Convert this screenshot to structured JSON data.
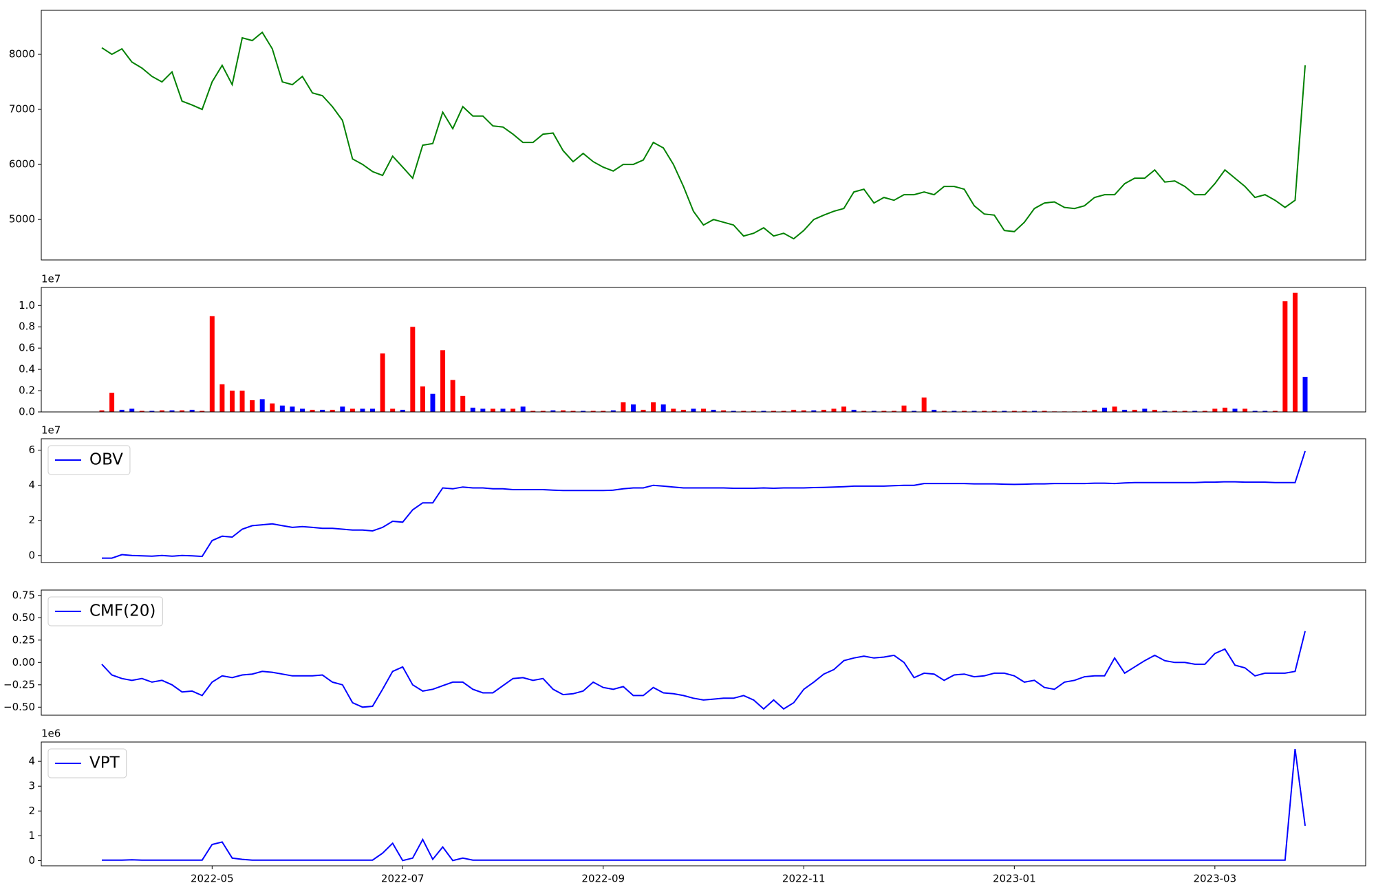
{
  "chart_data": [
    {
      "type": "line",
      "ylim": [
        4265,
        8800
      ],
      "yticks": [
        5000,
        6000,
        7000,
        8000
      ],
      "series": [
        {
          "color": "#008000",
          "values": [
            8120,
            8000,
            8100,
            7860,
            7750,
            7600,
            7500,
            7680,
            7150,
            7080,
            7000,
            7500,
            7800,
            7450,
            8300,
            8250,
            8400,
            8100,
            7500,
            7450,
            7600,
            7300,
            7250,
            7050,
            6800,
            6100,
            6000,
            5870,
            5800,
            6150,
            5950,
            5750,
            6350,
            6380,
            6950,
            6650,
            7050,
            6880,
            6880,
            6700,
            6680,
            6550,
            6400,
            6400,
            6550,
            6570,
            6250,
            6050,
            6200,
            6050,
            5950,
            5880,
            6000,
            6000,
            6080,
            6400,
            6300,
            6000,
            5600,
            5150,
            4900,
            5000,
            4950,
            4900,
            4700,
            4750,
            4850,
            4700,
            4750,
            4650,
            4800,
            5000,
            5080,
            5150,
            5200,
            5500,
            5550,
            5300,
            5400,
            5350,
            5450,
            5450,
            5500,
            5450,
            5600,
            5600,
            5550,
            5250,
            5100,
            5080,
            4800,
            4780,
            4950,
            5200,
            5300,
            5320,
            5220,
            5200,
            5250,
            5400,
            5450,
            5450,
            5650,
            5750,
            5750,
            5900,
            5680,
            5700,
            5600,
            5450,
            5450,
            5650,
            5900,
            5750,
            5600,
            5400,
            5450,
            5350,
            5220,
            5350,
            7800
          ]
        }
      ]
    },
    {
      "type": "bar",
      "ylim": [
        0,
        11700000
      ],
      "y_offset_label": "1e7",
      "yticks": [
        {
          "value": 0,
          "label": "0.0"
        },
        {
          "value": 2000000,
          "label": "0.2"
        },
        {
          "value": 4000000,
          "label": "0.4"
        },
        {
          "value": 6000000,
          "label": "0.6"
        },
        {
          "value": 8000000,
          "label": "0.8"
        },
        {
          "value": 10000000,
          "label": "1.0"
        }
      ],
      "values": [
        150000.0,
        1800000.0,
        200000.0,
        300000.0,
        100000.0,
        100000.0,
        150000.0,
        150000.0,
        150000.0,
        200000.0,
        100000.0,
        9000000.0,
        2600000.0,
        2000000.0,
        2000000.0,
        1100000.0,
        1200000.0,
        800000.0,
        600000.0,
        500000.0,
        300000.0,
        200000.0,
        200000.0,
        200000.0,
        500000.0,
        300000.0,
        300000.0,
        300000.0,
        5500000.0,
        300000.0,
        200000.0,
        8000000.0,
        2400000.0,
        1700000.0,
        5800000.0,
        3000000.0,
        1500000.0,
        400000.0,
        300000.0,
        300000.0,
        300000.0,
        300000.0,
        500000.0,
        100000.0,
        100000.0,
        150000.0,
        150000.0,
        100000.0,
        100000.0,
        100000.0,
        100000.0,
        150000.0,
        900000.0,
        700000.0,
        200000.0,
        900000.0,
        700000.0,
        300000.0,
        200000.0,
        300000.0,
        300000.0,
        200000.0,
        150000.0,
        100000.0,
        100000.0,
        100000.0,
        100000.0,
        100000.0,
        100000.0,
        200000.0,
        150000.0,
        150000.0,
        200000.0,
        300000.0,
        500000.0,
        200000.0,
        100000.0,
        100000.0,
        100000.0,
        100000.0,
        600000.0,
        100000.0,
        1350000.0,
        200000.0,
        100000.0,
        100000.0,
        100000.0,
        100000.0,
        100000.0,
        100000.0,
        100000.0,
        100000.0,
        100000.0,
        100000.0,
        100000.0,
        50000.0,
        50000.0,
        50000.0,
        100000.0,
        200000.0,
        400000.0,
        500000.0,
        200000.0,
        200000.0,
        300000.0,
        200000.0,
        100000.0,
        100000.0,
        100000.0,
        100000.0,
        100000.0,
        300000.0,
        400000.0,
        300000.0,
        300000.0,
        100000.0,
        100000.0,
        100000.0,
        10400000.0,
        11200000.0,
        3300000.0
      ],
      "colors": [
        "red",
        "red",
        "blue",
        "blue",
        "red",
        "blue",
        "red",
        "blue",
        "red",
        "blue",
        "red",
        "red",
        "red",
        "red",
        "red",
        "red",
        "blue",
        "red",
        "blue",
        "blue",
        "blue",
        "red",
        "blue",
        "red",
        "blue",
        "red",
        "blue",
        "blue",
        "red",
        "red",
        "blue",
        "red",
        "red",
        "blue",
        "red",
        "red",
        "red",
        "blue",
        "blue",
        "red",
        "blue",
        "red",
        "blue",
        "red",
        "red",
        "blue",
        "red",
        "red",
        "blue",
        "red",
        "red",
        "blue",
        "red",
        "blue",
        "red",
        "red",
        "blue",
        "red",
        "red",
        "blue",
        "red",
        "blue",
        "red",
        "blue",
        "red",
        "red",
        "blue",
        "red",
        "red",
        "red",
        "red",
        "blue",
        "red",
        "red",
        "red",
        "blue",
        "red",
        "blue",
        "red",
        "red",
        "red",
        "blue",
        "red",
        "blue",
        "red",
        "blue",
        "red",
        "blue",
        "red",
        "red",
        "blue",
        "red",
        "red",
        "blue",
        "red",
        "red",
        "red",
        "red",
        "red",
        "red",
        "blue",
        "red",
        "blue",
        "red",
        "blue",
        "red",
        "blue",
        "red",
        "red",
        "blue",
        "red",
        "red",
        "red",
        "blue",
        "red",
        "blue",
        "blue",
        "red",
        "red",
        "red",
        "blue"
      ]
    },
    {
      "type": "line",
      "ylim": [
        -4000000,
        66500000
      ],
      "y_offset_label": "1e7",
      "legend": "upper left",
      "yticks": [
        0,
        {
          "value": 20000000,
          "label": "2"
        },
        {
          "value": 40000000,
          "label": "4"
        },
        {
          "value": 60000000,
          "label": "6"
        }
      ],
      "series": [
        {
          "name": "OBV",
          "color": "#0000ff",
          "values": [
            -1500000.0,
            -1500000.0,
            500000.0,
            0,
            -200000.0,
            -400000.0,
            0,
            -400000.0,
            0,
            -200000.0,
            -500000.0,
            8500000.0,
            11000000.0,
            10500000.0,
            15000000.0,
            17000000.0,
            17500000.0,
            18000000.0,
            17000000.0,
            16000000.0,
            16500000.0,
            16000000.0,
            15500000.0,
            15500000.0,
            15000000.0,
            14500000.0,
            14500000.0,
            14000000.0,
            16000000.0,
            19500000.0,
            19000000.0,
            26000000.0,
            30000000.0,
            30000000.0,
            38500000.0,
            38000000.0,
            39000000.0,
            38500000.0,
            38500000.0,
            38000000.0,
            38000000.0,
            37500000.0,
            37500000.0,
            37500000.0,
            37500000.0,
            37200000.0,
            37000000.0,
            37000000.0,
            37000000.0,
            37000000.0,
            37000000.0,
            37200000.0,
            38000000.0,
            38500000.0,
            38500000.0,
            40000000.0,
            39500000.0,
            39000000.0,
            38500000.0,
            38500000.0,
            38500000.0,
            38500000.0,
            38500000.0,
            38300000.0,
            38300000.0,
            38300000.0,
            38500000.0,
            38300000.0,
            38500000.0,
            38500000.0,
            38500000.0,
            38700000.0,
            38800000.0,
            39000000.0,
            39200000.0,
            39500000.0,
            39500000.0,
            39500000.0,
            39500000.0,
            39800000.0,
            40000000.0,
            40000000.0,
            41000000.0,
            41000000.0,
            41000000.0,
            41000000.0,
            41000000.0,
            40800000.0,
            40800000.0,
            40800000.0,
            40600000.0,
            40500000.0,
            40600000.0,
            40800000.0,
            40800000.0,
            41000000.0,
            41000000.0,
            41000000.0,
            41000000.0,
            41200000.0,
            41200000.0,
            41000000.0,
            41300000.0,
            41500000.0,
            41500000.0,
            41500000.0,
            41500000.0,
            41500000.0,
            41500000.0,
            41500000.0,
            41800000.0,
            41800000.0,
            42000000.0,
            42000000.0,
            41800000.0,
            41800000.0,
            41800000.0,
            41500000.0,
            41500000.0,
            41500000.0,
            59500000.0
          ]
        }
      ]
    },
    {
      "type": "line",
      "ylim": [
        -0.59,
        0.81
      ],
      "legend": "upper left",
      "yticks": [
        {
          "value": -0.5,
          "label": "−0.50"
        },
        {
          "value": -0.25,
          "label": "−0.25"
        },
        {
          "value": 0,
          "label": "0.00"
        },
        {
          "value": 0.25,
          "label": "0.25"
        },
        {
          "value": 0.5,
          "label": "0.50"
        },
        {
          "value": 0.75,
          "label": "0.75"
        }
      ],
      "series": [
        {
          "name": "CMF(20)",
          "color": "#0000ff",
          "values": [
            -0.02,
            -0.14,
            -0.18,
            -0.2,
            -0.18,
            -0.22,
            -0.2,
            -0.25,
            -0.33,
            -0.32,
            -0.37,
            -0.22,
            -0.15,
            -0.17,
            -0.14,
            -0.13,
            -0.1,
            -0.11,
            -0.13,
            -0.15,
            -0.15,
            -0.15,
            -0.14,
            -0.22,
            -0.25,
            -0.45,
            -0.5,
            -0.49,
            -0.3,
            -0.1,
            -0.05,
            -0.25,
            -0.32,
            -0.3,
            -0.26,
            -0.22,
            -0.22,
            -0.3,
            -0.34,
            -0.34,
            -0.26,
            -0.18,
            -0.17,
            -0.2,
            -0.18,
            -0.3,
            -0.36,
            -0.35,
            -0.32,
            -0.22,
            -0.28,
            -0.3,
            -0.27,
            -0.37,
            -0.37,
            -0.28,
            -0.34,
            -0.35,
            -0.37,
            -0.4,
            -0.42,
            -0.41,
            -0.4,
            -0.4,
            -0.37,
            -0.42,
            -0.52,
            -0.42,
            -0.52,
            -0.45,
            -0.3,
            -0.22,
            -0.13,
            -0.08,
            0.02,
            0.05,
            0.07,
            0.05,
            0.06,
            0.08,
            0,
            -0.17,
            -0.12,
            -0.13,
            -0.2,
            -0.14,
            -0.13,
            -0.16,
            -0.15,
            -0.12,
            -0.12,
            -0.15,
            -0.22,
            -0.2,
            -0.28,
            -0.3,
            -0.22,
            -0.2,
            -0.16,
            -0.15,
            -0.15,
            0.05,
            -0.12,
            -0.05,
            0.02,
            0.08,
            0.02,
            0,
            0,
            -0.02,
            -0.02,
            0.1,
            0.15,
            -0.03,
            -0.06,
            -0.15,
            -0.12,
            -0.12,
            -0.12,
            -0.1,
            0.35
          ]
        }
      ]
    },
    {
      "type": "line",
      "ylim": [
        -210000,
        4780000
      ],
      "y_offset_label": "1e6",
      "legend": "upper left",
      "yticks": [
        0,
        {
          "value": 1000000,
          "label": "1"
        },
        {
          "value": 2000000,
          "label": "2"
        },
        {
          "value": 3000000,
          "label": "3"
        },
        {
          "value": 4000000,
          "label": "4"
        }
      ],
      "categories": [
        null,
        null,
        null,
        null,
        null,
        null,
        null,
        null,
        null,
        null,
        null,
        "2022-05",
        null,
        null,
        null,
        null,
        null,
        null,
        null,
        null,
        null,
        null,
        null,
        null,
        null,
        null,
        null,
        null,
        null,
        null,
        "2022-07",
        null,
        null,
        null,
        null,
        null,
        null,
        null,
        null,
        null,
        null,
        null,
        null,
        null,
        null,
        null,
        null,
        null,
        null,
        null,
        "2022-09",
        null,
        null,
        null,
        null,
        null,
        null,
        null,
        null,
        null,
        null,
        null,
        null,
        null,
        null,
        null,
        null,
        null,
        null,
        null,
        "2022-11",
        null,
        null,
        null,
        null,
        null,
        null,
        null,
        null,
        null,
        null,
        null,
        null,
        null,
        null,
        null,
        null,
        null,
        null,
        null,
        null,
        "2023-01",
        null,
        null,
        null,
        null,
        null,
        null,
        null,
        null,
        null,
        null,
        null,
        null,
        null,
        null,
        null,
        null,
        null,
        null,
        null,
        "2023-03",
        null,
        null,
        null,
        null,
        null,
        null,
        null,
        null,
        null
      ],
      "series": [
        {
          "name": "VPT",
          "color": "#0000ff",
          "values": [
            20000,
            20000,
            20000,
            30000,
            20000,
            20000,
            20000,
            20000,
            20000,
            20000,
            20000,
            650000,
            750000,
            100000,
            50000,
            20000,
            20000,
            20000,
            20000,
            20000,
            20000,
            20000,
            20000,
            20000,
            20000,
            20000,
            20000,
            20000,
            300000,
            700000,
            0,
            100000,
            850000,
            50000,
            550000,
            0,
            100000,
            20000,
            20000,
            20000,
            20000,
            20000,
            20000,
            20000,
            20000,
            20000,
            20000,
            20000,
            20000,
            20000,
            20000,
            20000,
            20000,
            20000,
            20000,
            20000,
            20000,
            20000,
            20000,
            20000,
            20000,
            20000,
            20000,
            20000,
            20000,
            20000,
            20000,
            20000,
            20000,
            20000,
            20000,
            20000,
            20000,
            20000,
            20000,
            20000,
            20000,
            20000,
            20000,
            20000,
            20000,
            20000,
            20000,
            20000,
            20000,
            20000,
            20000,
            20000,
            20000,
            20000,
            20000,
            20000,
            20000,
            20000,
            20000,
            20000,
            20000,
            20000,
            20000,
            20000,
            20000,
            20000,
            20000,
            20000,
            20000,
            20000,
            20000,
            20000,
            20000,
            20000,
            20000,
            20000,
            20000,
            20000,
            20000,
            20000,
            20000,
            20000,
            20000,
            4500000,
            1400000
          ]
        }
      ]
    }
  ]
}
